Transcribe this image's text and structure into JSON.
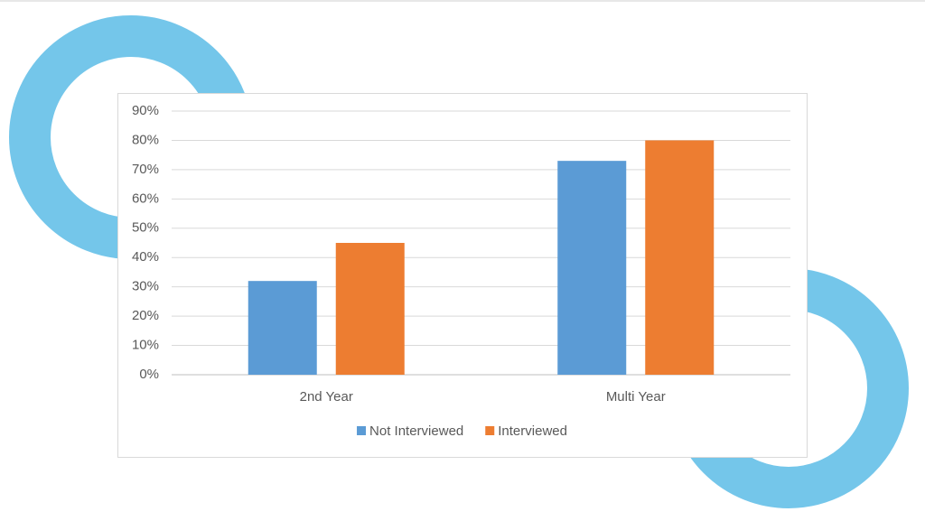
{
  "chart_data": {
    "type": "bar",
    "categories": [
      "2nd Year",
      "Multi Year"
    ],
    "series": [
      {
        "name": "Not Interviewed",
        "color": "#5b9bd5",
        "values": [
          32,
          73
        ]
      },
      {
        "name": "Interviewed",
        "color": "#ed7d31",
        "values": [
          45,
          80
        ]
      }
    ],
    "ylim": [
      0,
      90
    ],
    "yticks": [
      {
        "value": 0,
        "label": "0%"
      },
      {
        "value": 10,
        "label": "10%"
      },
      {
        "value": 20,
        "label": "20%"
      },
      {
        "value": 30,
        "label": "30%"
      },
      {
        "value": 40,
        "label": "40%"
      },
      {
        "value": 50,
        "label": "50%"
      },
      {
        "value": 60,
        "label": "60%"
      },
      {
        "value": 70,
        "label": "70%"
      },
      {
        "value": 80,
        "label": "80%"
      },
      {
        "value": 90,
        "label": "90%"
      }
    ],
    "grid": true,
    "legend": "bottom"
  }
}
